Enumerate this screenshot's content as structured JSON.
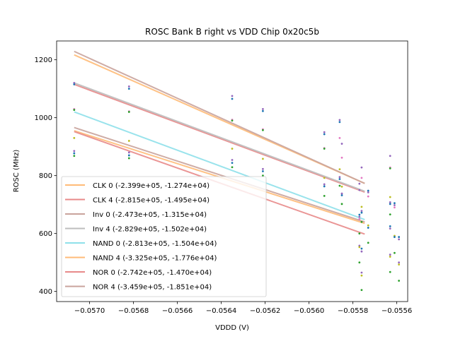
{
  "chart_data": {
    "type": "scatter",
    "title": "ROSC Bank B right vs VDD Chip 0x20c5b",
    "xlabel": "VDDD (V)",
    "ylabel": "ROSC (MHz)",
    "xlim": [
      -0.05715,
      -0.05555
    ],
    "ylim": [
      365,
      1265
    ],
    "xticks": [
      -0.057,
      -0.0568,
      -0.0566,
      -0.0564,
      -0.0562,
      -0.056,
      -0.0558,
      -0.0556
    ],
    "xtick_labels": [
      "−0.0570",
      "−0.0568",
      "−0.0566",
      "−0.0564",
      "−0.0562",
      "−0.0560",
      "−0.0558",
      "−0.0556"
    ],
    "yticks": [
      400,
      600,
      800,
      1000,
      1200
    ],
    "ytick_labels": [
      "400",
      "600",
      "800",
      "1000",
      "1200"
    ],
    "grid": false,
    "legend_position": "lower-left",
    "fit_x_range": [
      -0.05707,
      -0.055746
    ],
    "series": [
      {
        "name": "CLK 0 (-2.399e+05, -1.274e+04)",
        "color": "#ffbb78",
        "fit": [
          955,
          635
        ]
      },
      {
        "name": "CLK 4 (-2.815e+05, -1.495e+04)",
        "color": "#e88a8a",
        "fit": [
          1115,
          743
        ]
      },
      {
        "name": "Inv 0 (-2.473e+05, -1.315e+04)",
        "color": "#c9a39c",
        "fit": [
          966,
          640
        ]
      },
      {
        "name": "Inv 4 (-2.829e+05, -1.502e+04)",
        "color": "#bdbdbd",
        "fit": [
          1120,
          746
        ]
      },
      {
        "name": "NAND 0 (-2.813e+05, -1.504e+04)",
        "color": "#8ee0ea",
        "fit": [
          1020,
          648
        ]
      },
      {
        "name": "NAND 4 (-3.325e+05, -1.776e+04)",
        "color": "#ffbb78",
        "fit": [
          1217,
          773
        ]
      },
      {
        "name": "NOR 0 (-2.742e+05, -1.470e+04)",
        "color": "#e88a8a",
        "fit": [
          952,
          598
        ]
      },
      {
        "name": "NOR 4 (-3.459e+05, -1.851e+04)",
        "color": "#c9a39c",
        "fit": [
          1229,
          773
        ]
      }
    ],
    "points": [
      {
        "x": -0.05707,
        "y": 1120,
        "color": "#9467bd"
      },
      {
        "x": -0.05707,
        "y": 1115,
        "color": "#1f77b4"
      },
      {
        "x": -0.05707,
        "y": 1030,
        "color": "#e377c2"
      },
      {
        "x": -0.05707,
        "y": 1027,
        "color": "#2ca02c"
      },
      {
        "x": -0.05707,
        "y": 930,
        "color": "#bcbd22"
      },
      {
        "x": -0.05707,
        "y": 885,
        "color": "#9467bd"
      },
      {
        "x": -0.05707,
        "y": 877,
        "color": "#1f77b4"
      },
      {
        "x": -0.05707,
        "y": 868,
        "color": "#2ca02c"
      },
      {
        "x": -0.05682,
        "y": 1108,
        "color": "#9467bd"
      },
      {
        "x": -0.05682,
        "y": 1100,
        "color": "#1f77b4"
      },
      {
        "x": -0.05682,
        "y": 1022,
        "color": "#e377c2"
      },
      {
        "x": -0.05682,
        "y": 1020,
        "color": "#2ca02c"
      },
      {
        "x": -0.05682,
        "y": 920,
        "color": "#bcbd22"
      },
      {
        "x": -0.05682,
        "y": 880,
        "color": "#9467bd"
      },
      {
        "x": -0.05682,
        "y": 870,
        "color": "#1f77b4"
      },
      {
        "x": -0.05682,
        "y": 860,
        "color": "#2ca02c"
      },
      {
        "x": -0.05635,
        "y": 1075,
        "color": "#9467bd"
      },
      {
        "x": -0.05635,
        "y": 1065,
        "color": "#1f77b4"
      },
      {
        "x": -0.05635,
        "y": 993,
        "color": "#e377c2"
      },
      {
        "x": -0.05635,
        "y": 990,
        "color": "#2ca02c"
      },
      {
        "x": -0.05635,
        "y": 893,
        "color": "#bcbd22"
      },
      {
        "x": -0.05635,
        "y": 854,
        "color": "#9467bd"
      },
      {
        "x": -0.05635,
        "y": 844,
        "color": "#1f77b4"
      },
      {
        "x": -0.05635,
        "y": 829,
        "color": "#2ca02c"
      },
      {
        "x": -0.05621,
        "y": 1030,
        "color": "#9467bd"
      },
      {
        "x": -0.05621,
        "y": 1023,
        "color": "#1f77b4"
      },
      {
        "x": -0.05621,
        "y": 960,
        "color": "#e377c2"
      },
      {
        "x": -0.05621,
        "y": 957,
        "color": "#2ca02c"
      },
      {
        "x": -0.05621,
        "y": 858,
        "color": "#bcbd22"
      },
      {
        "x": -0.05621,
        "y": 823,
        "color": "#9467bd"
      },
      {
        "x": -0.05621,
        "y": 815,
        "color": "#1f77b4"
      },
      {
        "x": -0.05621,
        "y": 800,
        "color": "#2ca02c"
      },
      {
        "x": -0.05593,
        "y": 950,
        "color": "#9467bd"
      },
      {
        "x": -0.05593,
        "y": 943,
        "color": "#1f77b4"
      },
      {
        "x": -0.05593,
        "y": 895,
        "color": "#e377c2"
      },
      {
        "x": -0.05593,
        "y": 893,
        "color": "#2ca02c"
      },
      {
        "x": -0.05593,
        "y": 792,
        "color": "#bcbd22"
      },
      {
        "x": -0.05593,
        "y": 770,
        "color": "#9467bd"
      },
      {
        "x": -0.05593,
        "y": 763,
        "color": "#1f77b4"
      },
      {
        "x": -0.05593,
        "y": 730,
        "color": "#2ca02c"
      },
      {
        "x": -0.05586,
        "y": 992,
        "color": "#9467bd"
      },
      {
        "x": -0.05586,
        "y": 985,
        "color": "#1f77b4"
      },
      {
        "x": -0.05586,
        "y": 930,
        "color": "#e377c2"
      },
      {
        "x": -0.05585,
        "y": 910,
        "color": "#9467bd"
      },
      {
        "x": -0.05585,
        "y": 862,
        "color": "#e377c2"
      },
      {
        "x": -0.05586,
        "y": 822,
        "color": "#bcbd22"
      },
      {
        "x": -0.05586,
        "y": 795,
        "color": "#9467bd"
      },
      {
        "x": -0.05586,
        "y": 788,
        "color": "#1f77b4"
      },
      {
        "x": -0.05586,
        "y": 765,
        "color": "#2ca02c"
      },
      {
        "x": -0.05585,
        "y": 762,
        "color": "#bcbd22"
      },
      {
        "x": -0.05585,
        "y": 738,
        "color": "#9467bd"
      },
      {
        "x": -0.05585,
        "y": 732,
        "color": "#1f77b4"
      },
      {
        "x": -0.05585,
        "y": 702,
        "color": "#2ca02c"
      },
      {
        "x": -0.05576,
        "y": 828,
        "color": "#9467bd"
      },
      {
        "x": -0.05576,
        "y": 792,
        "color": "#e377c2"
      },
      {
        "x": -0.05577,
        "y": 772,
        "color": "#9467bd"
      },
      {
        "x": -0.05577,
        "y": 750,
        "color": "#9467bd"
      },
      {
        "x": -0.05576,
        "y": 692,
        "color": "#bcbd22"
      },
      {
        "x": -0.05576,
        "y": 678,
        "color": "#9467bd"
      },
      {
        "x": -0.05576,
        "y": 672,
        "color": "#1f77b4"
      },
      {
        "x": -0.05576,
        "y": 640,
        "color": "#2ca02c"
      },
      {
        "x": -0.05577,
        "y": 665,
        "color": "#1f77b4"
      },
      {
        "x": -0.05577,
        "y": 658,
        "color": "#9467bd"
      },
      {
        "x": -0.05577,
        "y": 650,
        "color": "#e377c2"
      },
      {
        "x": -0.05577,
        "y": 600,
        "color": "#2ca02c"
      },
      {
        "x": -0.05577,
        "y": 558,
        "color": "#9467bd"
      },
      {
        "x": -0.05577,
        "y": 553,
        "color": "#bcbd22"
      },
      {
        "x": -0.05577,
        "y": 500,
        "color": "#2ca02c"
      },
      {
        "x": -0.05573,
        "y": 748,
        "color": "#1f77b4"
      },
      {
        "x": -0.05573,
        "y": 742,
        "color": "#9467bd"
      },
      {
        "x": -0.05573,
        "y": 728,
        "color": "#e377c2"
      },
      {
        "x": -0.05573,
        "y": 628,
        "color": "#bcbd22"
      },
      {
        "x": -0.05573,
        "y": 620,
        "color": "#1f77b4"
      },
      {
        "x": -0.05573,
        "y": 568,
        "color": "#2ca02c"
      },
      {
        "x": -0.05576,
        "y": 548,
        "color": "#1f77b4"
      },
      {
        "x": -0.05576,
        "y": 538,
        "color": "#9467bd"
      },
      {
        "x": -0.05576,
        "y": 465,
        "color": "#9467bd"
      },
      {
        "x": -0.05576,
        "y": 455,
        "color": "#bcbd22"
      },
      {
        "x": -0.05576,
        "y": 405,
        "color": "#2ca02c"
      },
      {
        "x": -0.05563,
        "y": 868,
        "color": "#9467bd"
      },
      {
        "x": -0.05563,
        "y": 828,
        "color": "#e377c2"
      },
      {
        "x": -0.05563,
        "y": 825,
        "color": "#2ca02c"
      },
      {
        "x": -0.05563,
        "y": 726,
        "color": "#bcbd22"
      },
      {
        "x": -0.05563,
        "y": 708,
        "color": "#9467bd"
      },
      {
        "x": -0.05563,
        "y": 702,
        "color": "#1f77b4"
      },
      {
        "x": -0.05563,
        "y": 666,
        "color": "#2ca02c"
      },
      {
        "x": -0.05563,
        "y": 625,
        "color": "#1f77b4"
      },
      {
        "x": -0.05563,
        "y": 617,
        "color": "#9467bd"
      },
      {
        "x": -0.05563,
        "y": 527,
        "color": "#9467bd"
      },
      {
        "x": -0.05563,
        "y": 520,
        "color": "#bcbd22"
      },
      {
        "x": -0.05563,
        "y": 467,
        "color": "#2ca02c"
      },
      {
        "x": -0.05561,
        "y": 705,
        "color": "#1f77b4"
      },
      {
        "x": -0.05561,
        "y": 698,
        "color": "#9467bd"
      },
      {
        "x": -0.05561,
        "y": 690,
        "color": "#e377c2"
      },
      {
        "x": -0.05561,
        "y": 592,
        "color": "#bcbd22"
      },
      {
        "x": -0.05561,
        "y": 588,
        "color": "#1f77b4"
      },
      {
        "x": -0.05561,
        "y": 533,
        "color": "#2ca02c"
      },
      {
        "x": -0.05559,
        "y": 588,
        "color": "#1f77b4"
      },
      {
        "x": -0.05559,
        "y": 580,
        "color": "#9467bd"
      },
      {
        "x": -0.05559,
        "y": 500,
        "color": "#9467bd"
      },
      {
        "x": -0.05559,
        "y": 493,
        "color": "#bcbd22"
      },
      {
        "x": -0.05559,
        "y": 437,
        "color": "#2ca02c"
      }
    ]
  }
}
